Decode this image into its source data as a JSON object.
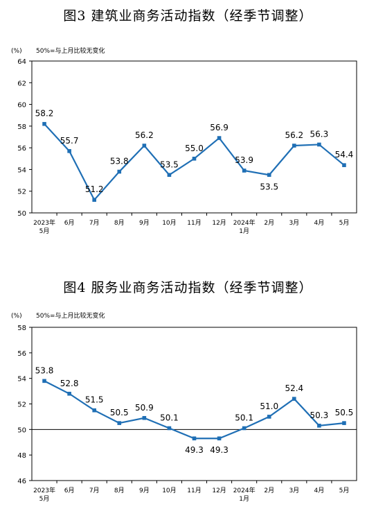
{
  "chart_data": [
    {
      "type": "line",
      "title": "图3  建筑业商务活动指数（经季节调整）",
      "unit_label": "(%)",
      "note": "50%=与上月比较无变化",
      "categories": [
        [
          "2023年",
          "5月"
        ],
        [
          "6月"
        ],
        [
          "7月"
        ],
        [
          "8月"
        ],
        [
          "9月"
        ],
        [
          "10月"
        ],
        [
          "11月"
        ],
        [
          "12月"
        ],
        [
          "2024年",
          "1月"
        ],
        [
          "2月"
        ],
        [
          "3月"
        ],
        [
          "4月"
        ],
        [
          "5月"
        ]
      ],
      "series": [
        {
          "values": [
            58.2,
            55.7,
            51.2,
            53.8,
            56.2,
            53.5,
            55.0,
            56.9,
            53.9,
            53.5,
            56.2,
            56.3,
            54.4
          ]
        }
      ],
      "data_labels": [
        "58.2",
        "55.7",
        "51.2",
        "53.8",
        "56.2",
        "53.5",
        "55.0",
        "56.9",
        "53.9",
        "53.5",
        "56.2",
        "56.3",
        "54.4"
      ],
      "label_position": [
        "above",
        "above",
        "above",
        "above",
        "above",
        "above",
        "above",
        "above",
        "above",
        "below",
        "above",
        "above",
        "above"
      ],
      "yticks": [
        50,
        52,
        54,
        56,
        58,
        60,
        62,
        64
      ],
      "ylim": [
        50,
        64
      ],
      "reference_line": null,
      "grid": false,
      "legend": "none",
      "line_color": "#1f6fb5"
    },
    {
      "type": "line",
      "title": "图4  服务业商务活动指数（经季节调整）",
      "unit_label": "(%)",
      "note": "50%=与上月比较无变化",
      "categories": [
        [
          "2023年",
          "5月"
        ],
        [
          "6月"
        ],
        [
          "7月"
        ],
        [
          "8月"
        ],
        [
          "9月"
        ],
        [
          "10月"
        ],
        [
          "11月"
        ],
        [
          "12月"
        ],
        [
          "2024年",
          "1月"
        ],
        [
          "2月"
        ],
        [
          "3月"
        ],
        [
          "4月"
        ],
        [
          "5月"
        ]
      ],
      "series": [
        {
          "values": [
            53.8,
            52.8,
            51.5,
            50.5,
            50.9,
            50.1,
            49.3,
            49.3,
            50.1,
            51.0,
            52.4,
            50.3,
            50.5
          ]
        }
      ],
      "data_labels": [
        "53.8",
        "52.8",
        "51.5",
        "50.5",
        "50.9",
        "50.1",
        "49.3",
        "49.3",
        "50.1",
        "51.0",
        "52.4",
        "50.3",
        "50.5"
      ],
      "label_position": [
        "above",
        "above",
        "above",
        "above",
        "above",
        "above",
        "below",
        "below",
        "above",
        "above",
        "above",
        "above",
        "above"
      ],
      "yticks": [
        46,
        48,
        50,
        52,
        54,
        56,
        58
      ],
      "ylim": [
        46,
        58
      ],
      "reference_line": 50,
      "grid": false,
      "legend": "none",
      "line_color": "#1f6fb5"
    }
  ]
}
